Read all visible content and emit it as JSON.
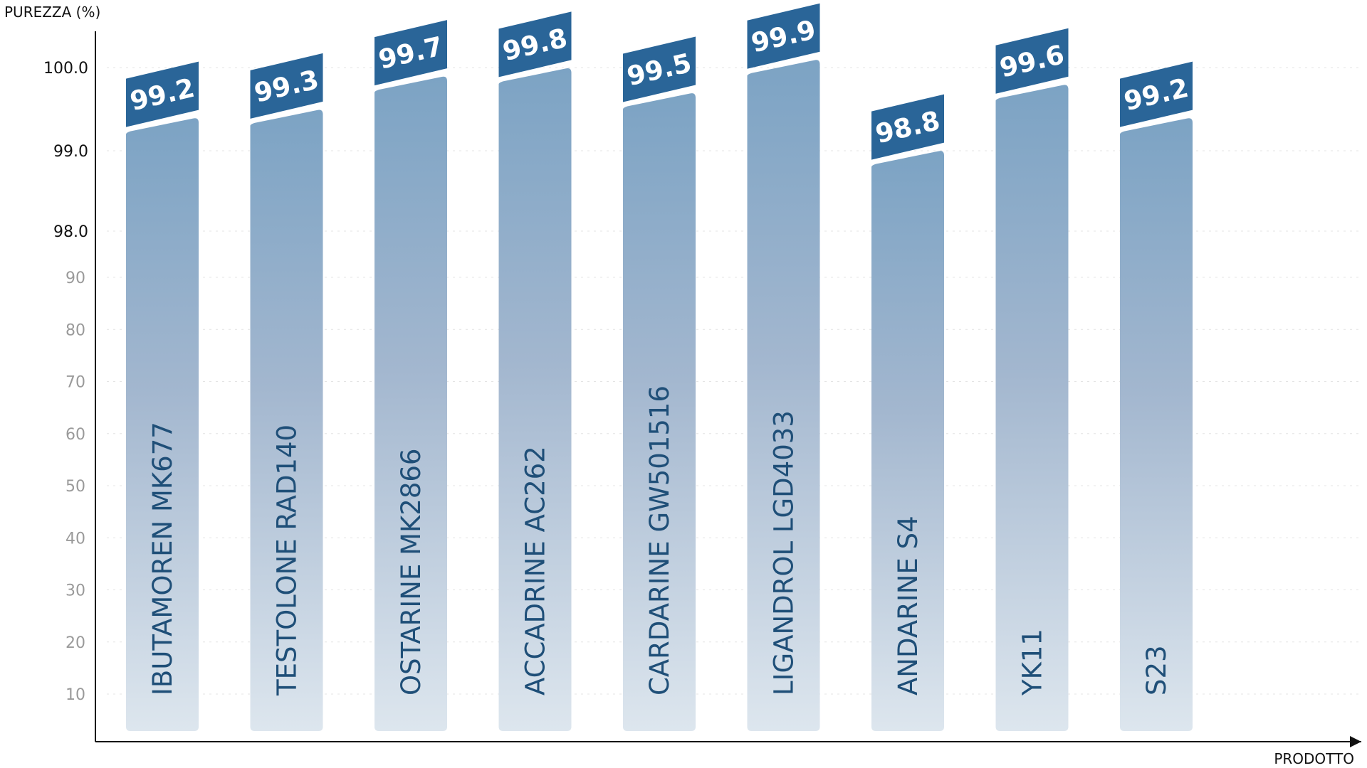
{
  "chart_data": {
    "type": "bar",
    "ylabel": "PUREZZA (%)",
    "xlabel": "PRODOTTO",
    "categories": [
      "IBUTAMOREN MK677",
      "TESTOLONE RAD140",
      "OSTARINE MK2866",
      "ACCADRINE AC262",
      "CARDARINE GW501516",
      "LIGANDROL LGD4033",
      "ANDARINE S4",
      "YK11",
      "S23"
    ],
    "values": [
      99.2,
      99.3,
      99.7,
      99.8,
      99.5,
      99.9,
      98.8,
      99.6,
      99.2
    ],
    "value_labels": [
      "99.2",
      "99.3",
      "99.7",
      "99.8",
      "99.5",
      "99.9",
      "98.8",
      "99.6",
      "99.2"
    ],
    "y_ticks_minor": [
      "10",
      "20",
      "30",
      "40",
      "50",
      "60",
      "70",
      "80",
      "90"
    ],
    "y_ticks_major": [
      "98.0",
      "99.0",
      "100.0"
    ],
    "ylim": [
      0,
      100
    ],
    "axis_break": "non-linear scale above 90 (98.0, 99.0, 100.0)",
    "grid": true,
    "colors": {
      "bar_top": "#7ca3c4",
      "bar_bottom": "#dde6ee",
      "value_badge": "#2a6598",
      "label": "#1f4f78"
    }
  }
}
